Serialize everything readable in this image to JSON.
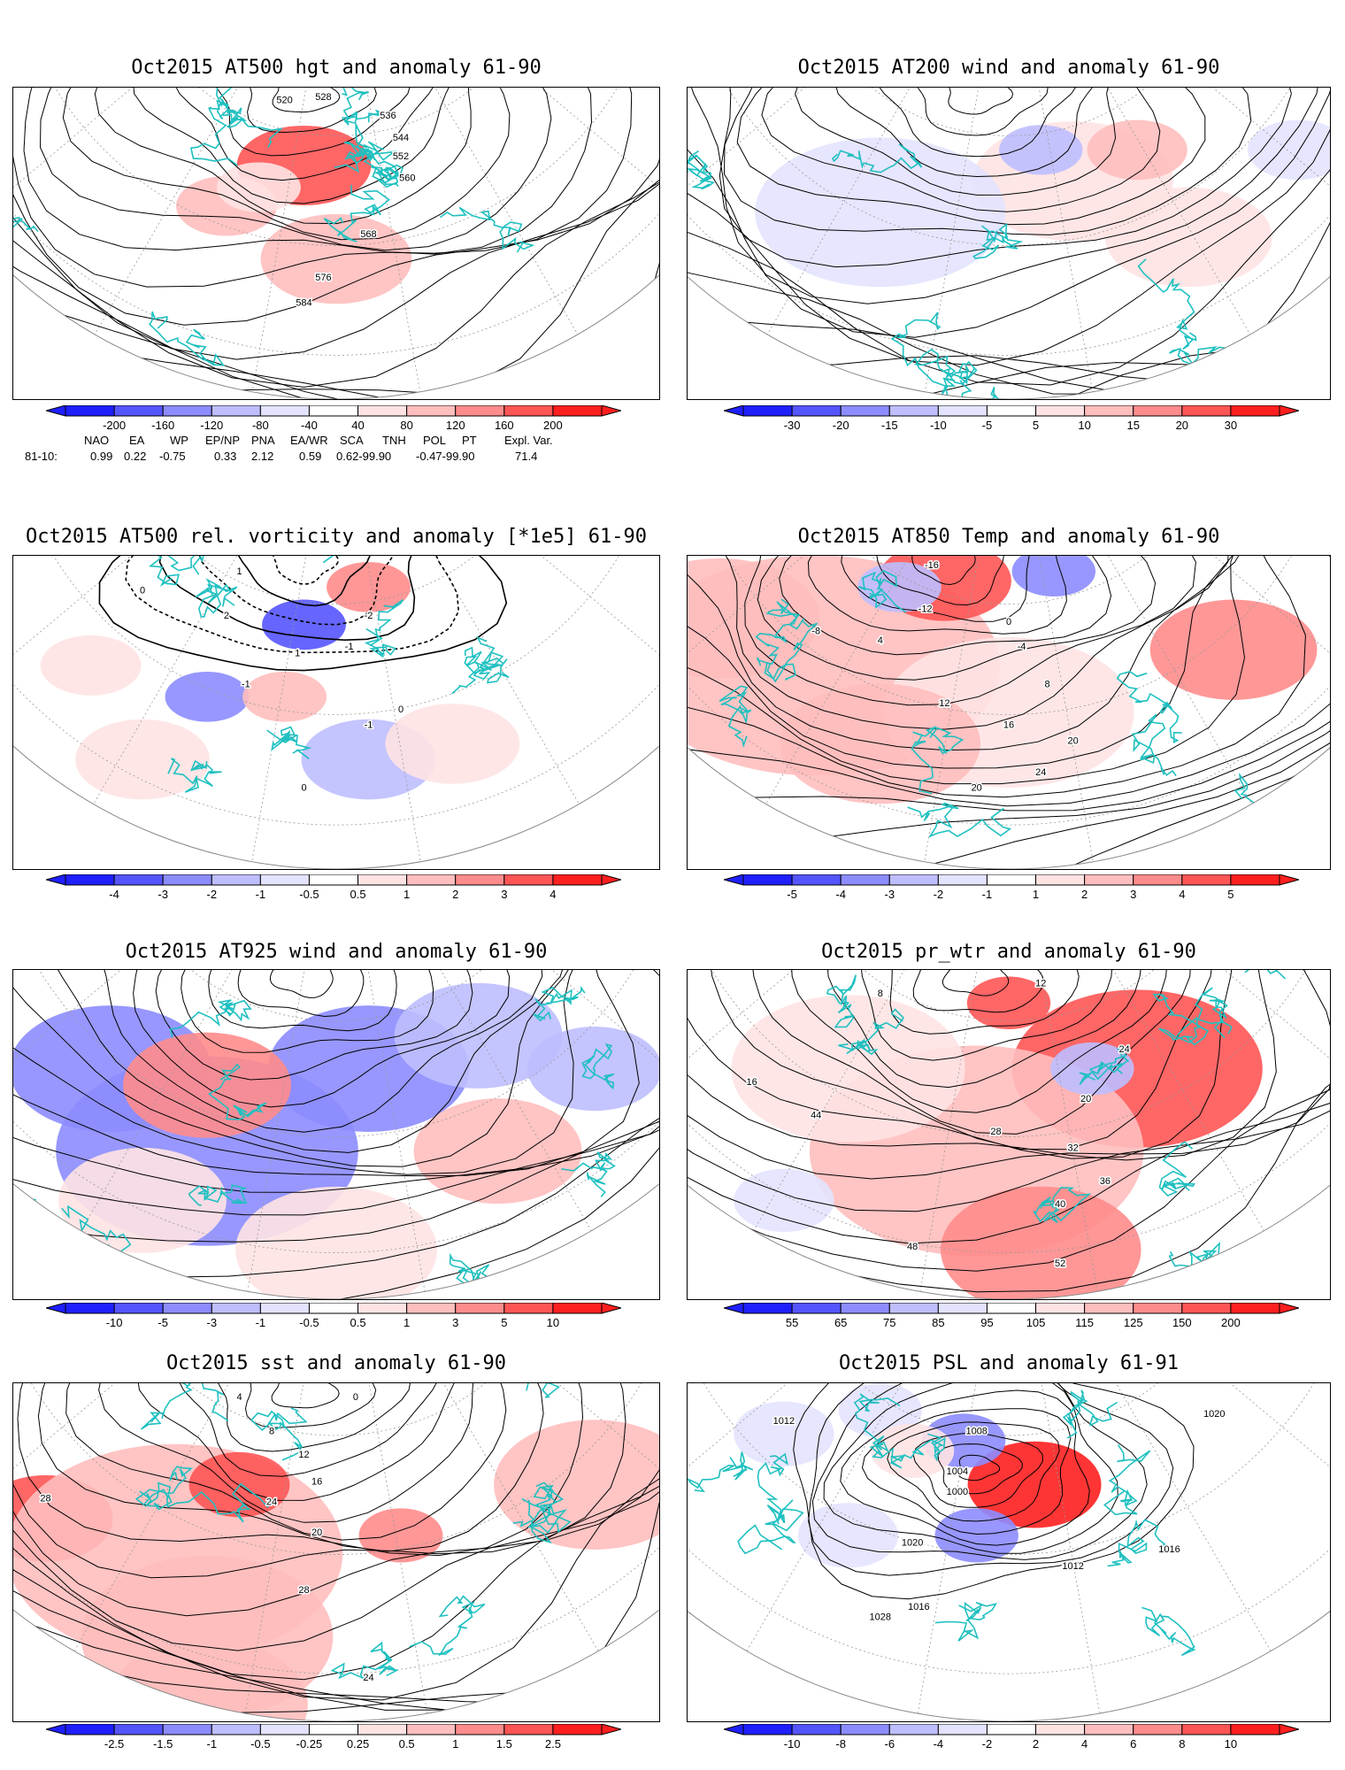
{
  "palette": {
    "neg": [
      "#1f1fff",
      "#5555ff",
      "#8c8cff",
      "#bebeff",
      "#e3e3ff"
    ],
    "pos": [
      "#ffe3e3",
      "#ffbebe",
      "#ff8c8c",
      "#ff5555",
      "#ff1f1f"
    ],
    "coast": "#20c0c0"
  },
  "panels": [
    {
      "title": "Oct2015 AT500 hgt and anomaly 61-90",
      "field": "hgt",
      "ticks": [
        "-200",
        "-160",
        "-120",
        "-80",
        "-40",
        "40",
        "80",
        "120",
        "160",
        "200"
      ],
      "contour_labels": [
        "520",
        "528",
        "536",
        "544",
        "552",
        "560",
        "568",
        "576",
        "584"
      ]
    },
    {
      "title": "Oct2015 AT200 wind and anomaly 61-90",
      "field": "wind",
      "ticks": [
        "-30",
        "-20",
        "-15",
        "-10",
        "-5",
        "5",
        "10",
        "15",
        "20",
        "30"
      ],
      "contour_labels": []
    },
    {
      "title": "Oct2015 AT500 rel. vorticity and anomaly [*1e5] 61-90",
      "field": "vort",
      "ticks": [
        "-4",
        "-3",
        "-2",
        "-1",
        "-0.5",
        "0.5",
        "1",
        "2",
        "3",
        "4"
      ],
      "contour_labels": [
        "0",
        "1",
        "2",
        "-1",
        "-2",
        "-1",
        "1",
        "0",
        "-1",
        "0"
      ]
    },
    {
      "title": "Oct2015 AT850 Temp and anomaly 61-90",
      "field": "temp",
      "ticks": [
        "-5",
        "-4",
        "-3",
        "-2",
        "-1",
        "1",
        "2",
        "3",
        "4",
        "5"
      ],
      "contour_labels": [
        "-16",
        "-12",
        "-8",
        "-4",
        "4",
        "0",
        "8",
        "12",
        "16",
        "20",
        "24",
        "20"
      ]
    },
    {
      "title": "Oct2015 AT925 wind and anomaly 61-90",
      "field": "wind925",
      "ticks": [
        "-10",
        "-5",
        "-3",
        "-1",
        "-0.5",
        "0.5",
        "1",
        "3",
        "5",
        "10"
      ],
      "contour_labels": []
    },
    {
      "title": "Oct2015 pr_wtr and anomaly 61-90",
      "field": "prwtr",
      "ticks": [
        "55",
        "65",
        "75",
        "85",
        "95",
        "105",
        "115",
        "125",
        "150",
        "200"
      ],
      "contour_labels": [
        "12",
        "8",
        "16",
        "24",
        "20",
        "28",
        "32",
        "36",
        "40",
        "44",
        "48",
        "52"
      ]
    },
    {
      "title": "Oct2015 sst and anomaly 61-90",
      "field": "sst",
      "ticks": [
        "-2.5",
        "-1.5",
        "-1",
        "-0.5",
        "-0.25",
        "0.25",
        "0.5",
        "1",
        "1.5",
        "2.5"
      ],
      "contour_labels": [
        "28",
        "24",
        "20",
        "16",
        "12",
        "8",
        "4",
        "0",
        "28",
        "24"
      ]
    },
    {
      "title": "Oct2015 PSL and anomaly 61-91",
      "field": "psl",
      "ticks": [
        "-10",
        "-8",
        "-6",
        "-4",
        "-2",
        "2",
        "4",
        "6",
        "8",
        "10"
      ],
      "contour_labels": [
        "1012",
        "1008",
        "1004",
        "1000",
        "1020",
        "1016",
        "1028",
        "1012",
        "1016",
        "1020"
      ]
    }
  ],
  "indices": {
    "headers": [
      "NAO",
      "EA",
      "WP",
      "EP/NP",
      "PNA",
      "EA/WR",
      "SCA",
      "TNH",
      "POL",
      "PT",
      "Expl. Var."
    ],
    "row_label": "81-10:",
    "values": [
      "0.99",
      "0.22",
      "-0.75",
      "0.33",
      "2.12",
      "0.59",
      "0.62-99.90",
      "-0.47-99.90",
      "71.4"
    ]
  }
}
